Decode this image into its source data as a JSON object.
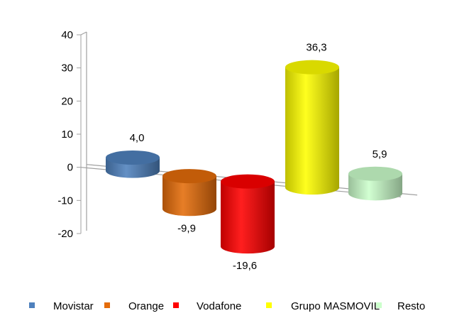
{
  "chart_data": {
    "type": "bar",
    "style": "3d-cylinder",
    "categories": [
      "Movistar",
      "Orange",
      "Vodafone",
      "Grupo MASMOVIL",
      "Resto"
    ],
    "values": [
      4.0,
      -9.9,
      -19.6,
      36.3,
      5.9
    ],
    "data_labels": [
      "4,0",
      "-9,9",
      "-19,6",
      "36,3",
      "5,9"
    ],
    "colors": [
      "#4f81bd",
      "#e46c0a",
      "#ff0000",
      "#ffff00",
      "#ccffcc"
    ],
    "y_ticks": [
      "40",
      "30",
      "20",
      "10",
      "0",
      "-10",
      "-20"
    ],
    "y_tick_values": [
      40,
      30,
      20,
      10,
      0,
      -10,
      -20
    ],
    "ylim": [
      -20,
      40
    ],
    "legend": {
      "placement": "bottom",
      "entries": [
        "Movistar",
        "Orange",
        "Vodafone",
        "Grupo MASMOVIL",
        "Resto"
      ]
    },
    "title": "",
    "xlabel": "",
    "ylabel": "",
    "grid": false
  }
}
